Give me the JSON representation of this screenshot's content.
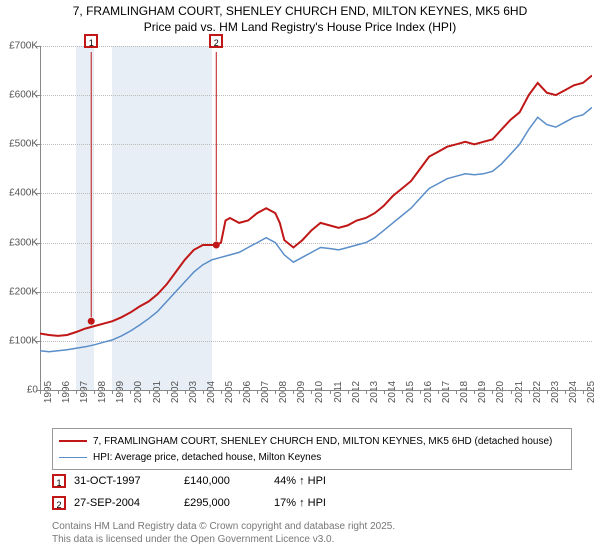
{
  "title_line1": "7, FRAMLINGHAM COURT, SHENLEY CHURCH END, MILTON KEYNES, MK5 6HD",
  "title_line2": "Price paid vs. HM Land Registry's House Price Index (HPI)",
  "chart": {
    "type": "line",
    "background_color": "#ffffff",
    "grid_color": "#bbbbbb",
    "axis_color": "#888888",
    "shade_color": "#e8eef5",
    "x_range": [
      1995,
      2025.5
    ],
    "y_range": [
      0,
      700000
    ],
    "y_ticks": [
      0,
      100000,
      200000,
      300000,
      400000,
      500000,
      600000,
      700000
    ],
    "y_tick_labels": [
      "£0",
      "£100K",
      "£200K",
      "£300K",
      "£400K",
      "£500K",
      "£600K",
      "£700K"
    ],
    "x_ticks": [
      1995,
      1996,
      1997,
      1998,
      1999,
      2000,
      2001,
      2002,
      2003,
      2004,
      2005,
      2006,
      2007,
      2008,
      2009,
      2010,
      2011,
      2012,
      2013,
      2014,
      2015,
      2016,
      2017,
      2018,
      2019,
      2020,
      2021,
      2022,
      2023,
      2024,
      2025
    ],
    "shaded_year_ranges": [
      [
        1997.0,
        1998.0
      ],
      [
        1999.0,
        2004.5
      ]
    ],
    "series": [
      {
        "key": "property",
        "color": "#c01717",
        "width": 2,
        "legend": "7, FRAMLINGHAM COURT, SHENLEY CHURCH END, MILTON KEYNES, MK5 6HD (detached house)",
        "points": [
          [
            1995.0,
            115000
          ],
          [
            1995.5,
            112000
          ],
          [
            1996.0,
            110000
          ],
          [
            1996.5,
            112000
          ],
          [
            1997.0,
            118000
          ],
          [
            1997.5,
            125000
          ],
          [
            1998.0,
            130000
          ],
          [
            1998.5,
            135000
          ],
          [
            1999.0,
            140000
          ],
          [
            1999.5,
            148000
          ],
          [
            2000.0,
            158000
          ],
          [
            2000.5,
            170000
          ],
          [
            2001.0,
            180000
          ],
          [
            2001.5,
            195000
          ],
          [
            2002.0,
            215000
          ],
          [
            2002.5,
            240000
          ],
          [
            2003.0,
            265000
          ],
          [
            2003.5,
            285000
          ],
          [
            2004.0,
            295000
          ],
          [
            2004.75,
            295000
          ],
          [
            2005.0,
            300000
          ],
          [
            2005.25,
            345000
          ],
          [
            2005.5,
            350000
          ],
          [
            2006.0,
            340000
          ],
          [
            2006.5,
            345000
          ],
          [
            2007.0,
            360000
          ],
          [
            2007.5,
            370000
          ],
          [
            2008.0,
            360000
          ],
          [
            2008.25,
            340000
          ],
          [
            2008.5,
            305000
          ],
          [
            2009.0,
            290000
          ],
          [
            2009.5,
            305000
          ],
          [
            2010.0,
            325000
          ],
          [
            2010.5,
            340000
          ],
          [
            2011.0,
            335000
          ],
          [
            2011.5,
            330000
          ],
          [
            2012.0,
            335000
          ],
          [
            2012.5,
            345000
          ],
          [
            2013.0,
            350000
          ],
          [
            2013.5,
            360000
          ],
          [
            2014.0,
            375000
          ],
          [
            2014.5,
            395000
          ],
          [
            2015.0,
            410000
          ],
          [
            2015.5,
            425000
          ],
          [
            2016.0,
            450000
          ],
          [
            2016.5,
            475000
          ],
          [
            2017.0,
            485000
          ],
          [
            2017.5,
            495000
          ],
          [
            2018.0,
            500000
          ],
          [
            2018.5,
            505000
          ],
          [
            2019.0,
            500000
          ],
          [
            2019.5,
            505000
          ],
          [
            2020.0,
            510000
          ],
          [
            2020.5,
            530000
          ],
          [
            2021.0,
            550000
          ],
          [
            2021.5,
            565000
          ],
          [
            2022.0,
            600000
          ],
          [
            2022.5,
            625000
          ],
          [
            2023.0,
            605000
          ],
          [
            2023.5,
            600000
          ],
          [
            2024.0,
            610000
          ],
          [
            2024.5,
            620000
          ],
          [
            2025.0,
            625000
          ],
          [
            2025.5,
            640000
          ]
        ]
      },
      {
        "key": "hpi",
        "color": "#5a8ec9",
        "width": 1.5,
        "legend": "HPI: Average price, detached house, Milton Keynes",
        "points": [
          [
            1995.0,
            80000
          ],
          [
            1995.5,
            78000
          ],
          [
            1996.0,
            80000
          ],
          [
            1996.5,
            82000
          ],
          [
            1997.0,
            85000
          ],
          [
            1997.5,
            88000
          ],
          [
            1998.0,
            92000
          ],
          [
            1998.5,
            97000
          ],
          [
            1999.0,
            102000
          ],
          [
            1999.5,
            110000
          ],
          [
            2000.0,
            120000
          ],
          [
            2000.5,
            132000
          ],
          [
            2001.0,
            145000
          ],
          [
            2001.5,
            160000
          ],
          [
            2002.0,
            180000
          ],
          [
            2002.5,
            200000
          ],
          [
            2003.0,
            220000
          ],
          [
            2003.5,
            240000
          ],
          [
            2004.0,
            255000
          ],
          [
            2004.5,
            265000
          ],
          [
            2005.0,
            270000
          ],
          [
            2005.5,
            275000
          ],
          [
            2006.0,
            280000
          ],
          [
            2006.5,
            290000
          ],
          [
            2007.0,
            300000
          ],
          [
            2007.5,
            310000
          ],
          [
            2008.0,
            300000
          ],
          [
            2008.5,
            275000
          ],
          [
            2009.0,
            260000
          ],
          [
            2009.5,
            270000
          ],
          [
            2010.0,
            280000
          ],
          [
            2010.5,
            290000
          ],
          [
            2011.0,
            288000
          ],
          [
            2011.5,
            285000
          ],
          [
            2012.0,
            290000
          ],
          [
            2012.5,
            295000
          ],
          [
            2013.0,
            300000
          ],
          [
            2013.5,
            310000
          ],
          [
            2014.0,
            325000
          ],
          [
            2014.5,
            340000
          ],
          [
            2015.0,
            355000
          ],
          [
            2015.5,
            370000
          ],
          [
            2016.0,
            390000
          ],
          [
            2016.5,
            410000
          ],
          [
            2017.0,
            420000
          ],
          [
            2017.5,
            430000
          ],
          [
            2018.0,
            435000
          ],
          [
            2018.5,
            440000
          ],
          [
            2019.0,
            438000
          ],
          [
            2019.5,
            440000
          ],
          [
            2020.0,
            445000
          ],
          [
            2020.5,
            460000
          ],
          [
            2021.0,
            480000
          ],
          [
            2021.5,
            500000
          ],
          [
            2022.0,
            530000
          ],
          [
            2022.5,
            555000
          ],
          [
            2023.0,
            540000
          ],
          [
            2023.5,
            535000
          ],
          [
            2024.0,
            545000
          ],
          [
            2024.5,
            555000
          ],
          [
            2025.0,
            560000
          ],
          [
            2025.5,
            575000
          ]
        ]
      }
    ],
    "sale_markers": [
      {
        "n": "1",
        "x": 1997.83,
        "y": 140000
      },
      {
        "n": "2",
        "x": 2004.74,
        "y": 295000
      }
    ]
  },
  "sales": [
    {
      "n": "1",
      "date": "31-OCT-1997",
      "price": "£140,000",
      "note": "44% ↑ HPI"
    },
    {
      "n": "2",
      "date": "27-SEP-2004",
      "price": "£295,000",
      "note": "17% ↑ HPI"
    }
  ],
  "copyright_line1": "Contains HM Land Registry data © Crown copyright and database right 2025.",
  "copyright_line2": "This data is licensed under the Open Government Licence v3.0."
}
